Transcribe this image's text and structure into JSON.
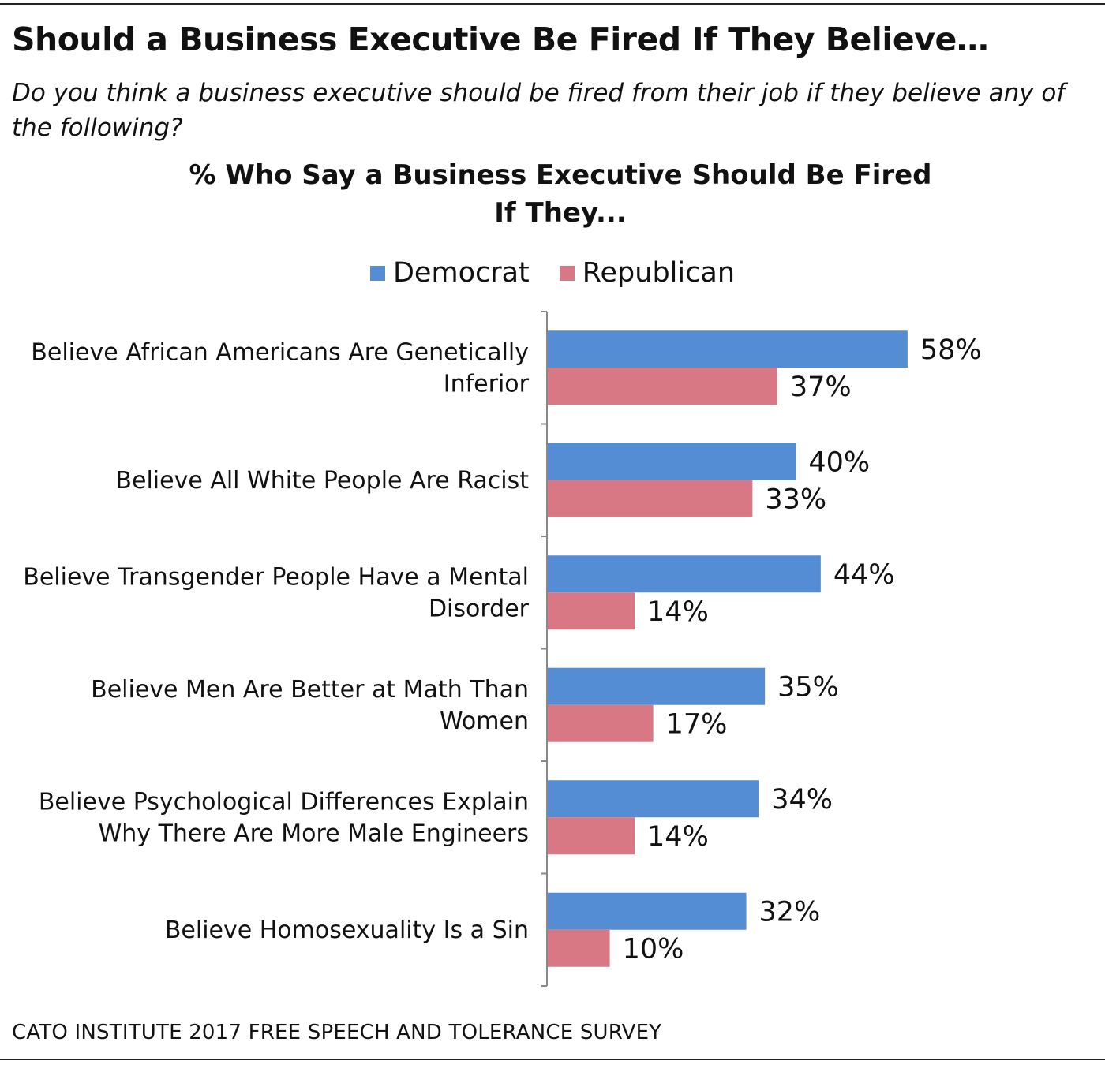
{
  "title": "Should a Business Executive Be Fired If They Believe…",
  "subtitle": "Do you think a business executive should be fired from their job if they believe any of the following?",
  "source": "CATO INSTITUTE 2017 FREE SPEECH AND TOLERANCE SURVEY",
  "colors": {
    "democrat": "#548DD4",
    "republican": "#D87885",
    "axis": "#888888",
    "text": "#111111"
  },
  "chart_data": {
    "type": "bar",
    "orientation": "horizontal",
    "title": "% Who Say a Business Executive Should Be Fired If They...",
    "title_lines": [
      "% Who Say a Business Executive Should Be Fired",
      "If They..."
    ],
    "legend_position": "top-center",
    "categories": [
      [
        "Believe African Americans Are Genetically",
        "Inferior"
      ],
      [
        "Believe All White People Are Racist"
      ],
      [
        "Believe Transgender People Have a Mental",
        "Disorder"
      ],
      [
        "Believe Men Are Better at Math Than",
        "Women"
      ],
      [
        "Believe Psychological Differences Explain",
        "Why There Are More Male Engineers"
      ],
      [
        "Believe Homosexuality Is a Sin"
      ]
    ],
    "series": [
      {
        "name": "Democrat",
        "values": [
          58,
          40,
          44,
          35,
          34,
          32
        ],
        "labels": [
          "58%",
          "40%",
          "44%",
          "35%",
          "34%",
          "32%"
        ]
      },
      {
        "name": "Republican",
        "values": [
          37,
          33,
          14,
          17,
          14,
          10
        ],
        "labels": [
          "37%",
          "33%",
          "14%",
          "17%",
          "14%",
          "10%"
        ]
      }
    ],
    "xlim": [
      0,
      100
    ],
    "grid": false
  }
}
